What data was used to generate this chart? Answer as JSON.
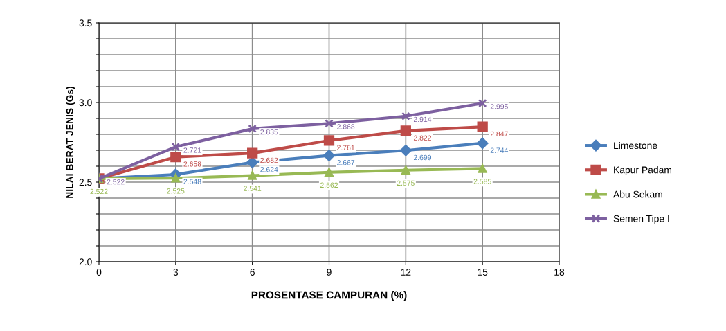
{
  "chart_data": {
    "type": "line",
    "xlabel": "PROSENTASE CAMPURAN (%)",
    "ylabel": "NILAI BERAT JENIS (Gs)",
    "x": [
      0,
      3,
      6,
      9,
      12,
      15
    ],
    "series": [
      {
        "name": "Limestone",
        "color": "#4a7ebb",
        "marker": "diamond",
        "values": [
          2.522,
          2.548,
          2.624,
          2.667,
          2.699,
          2.744
        ],
        "value_labels": [
          null,
          "2.548",
          "2.624",
          "2.667",
          "2.699",
          "2.744"
        ]
      },
      {
        "name": "Kapur Padam",
        "color": "#be4b48",
        "marker": "square",
        "values": [
          2.522,
          2.658,
          2.682,
          2.761,
          2.822,
          2.847
        ],
        "value_labels": [
          null,
          "2.658",
          "2.682",
          "2.761",
          "2.822",
          "2.847"
        ]
      },
      {
        "name": "Abu Sekam",
        "color": "#98b954",
        "marker": "triangle",
        "values": [
          2.522,
          2.525,
          2.541,
          2.562,
          2.575,
          2.585
        ],
        "value_labels": [
          "2.522",
          "2.525",
          "2.541",
          "2.562",
          "2.575",
          "2.585"
        ]
      },
      {
        "name": "Semen Tipe I",
        "color": "#7d60a0",
        "marker": "cross",
        "values": [
          2.522,
          2.721,
          2.835,
          2.868,
          2.914,
          2.995
        ],
        "value_labels": [
          "2.522",
          "2.721",
          "2.835",
          "2.868",
          "2.914",
          "2.995"
        ]
      }
    ],
    "xlim": [
      0,
      18
    ],
    "xticks": [
      0,
      3,
      6,
      9,
      12,
      15,
      18
    ],
    "ylim": [
      2.0,
      3.5
    ],
    "yticks": [
      {
        "value": 2.0,
        "label": "2.0"
      },
      {
        "value": 2.1,
        "label": null
      },
      {
        "value": 2.2,
        "label": null
      },
      {
        "value": 2.3,
        "label": null
      },
      {
        "value": 2.4,
        "label": null
      },
      {
        "value": 2.5,
        "label": "2.5"
      },
      {
        "value": 2.6,
        "label": null
      },
      {
        "value": 2.7,
        "label": null
      },
      {
        "value": 2.8,
        "label": null
      },
      {
        "value": 2.9,
        "label": null
      },
      {
        "value": 3.0,
        "label": "3.0"
      },
      {
        "value": 3.1,
        "label": null
      },
      {
        "value": 3.2,
        "label": null
      },
      {
        "value": 3.3,
        "label": null
      },
      {
        "value": 3.4,
        "label": null
      },
      {
        "value": 3.5,
        "label": "3.5"
      }
    ],
    "grid": true,
    "legend": "right",
    "line_style": "solid"
  }
}
